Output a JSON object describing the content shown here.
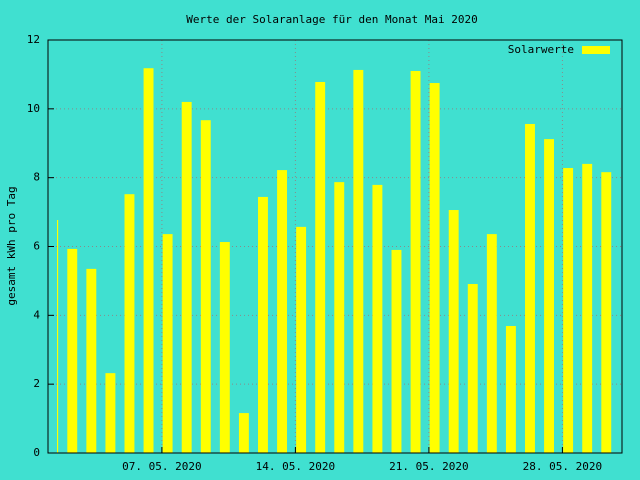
{
  "chart_data": {
    "type": "bar",
    "title": "Werte der Solaranlage für den Monat Mai 2020",
    "y_label": "gesamt kWh pro Tag",
    "x": [
      "2020-05-01",
      "2020-05-02",
      "2020-05-03",
      "2020-05-04",
      "2020-05-05",
      "2020-05-06",
      "2020-05-07",
      "2020-05-08",
      "2020-05-09",
      "2020-05-10",
      "2020-05-11",
      "2020-05-12",
      "2020-05-13",
      "2020-05-14",
      "2020-05-15",
      "2020-05-16",
      "2020-05-17",
      "2020-05-18",
      "2020-05-19",
      "2020-05-20",
      "2020-05-21",
      "2020-05-22",
      "2020-05-23",
      "2020-05-24",
      "2020-05-25",
      "2020-05-26",
      "2020-05-27",
      "2020-05-28",
      "2020-05-29",
      "2020-05-30"
    ],
    "series": [
      {
        "name": "Solarwerte",
        "color": "#ffff00",
        "values": [
          6.77,
          5.93,
          5.35,
          2.32,
          7.52,
          11.18,
          6.36,
          10.2,
          9.67,
          6.13,
          1.16,
          7.44,
          8.22,
          6.57,
          10.78,
          7.87,
          11.13,
          7.79,
          5.9,
          11.1,
          10.75,
          7.06,
          4.91,
          6.36,
          3.69,
          9.56,
          9.12,
          8.28,
          8.4,
          8.16
        ]
      }
    ],
    "xlim": [
      "2020-05-01T12:00",
      "2020-05-31T03:00"
    ],
    "xticks": [
      {
        "value": "2020-05-07",
        "label": "07. 05. 2020"
      },
      {
        "value": "2020-05-14",
        "label": "14. 05. 2020"
      },
      {
        "value": "2020-05-21",
        "label": "21. 05. 2020"
      },
      {
        "value": "2020-05-28",
        "label": "28. 05. 2020"
      }
    ],
    "ylim": [
      0,
      12
    ],
    "yticks": [
      0,
      2,
      4,
      6,
      8,
      10,
      12
    ],
    "grid": true,
    "legend": "top-right"
  }
}
